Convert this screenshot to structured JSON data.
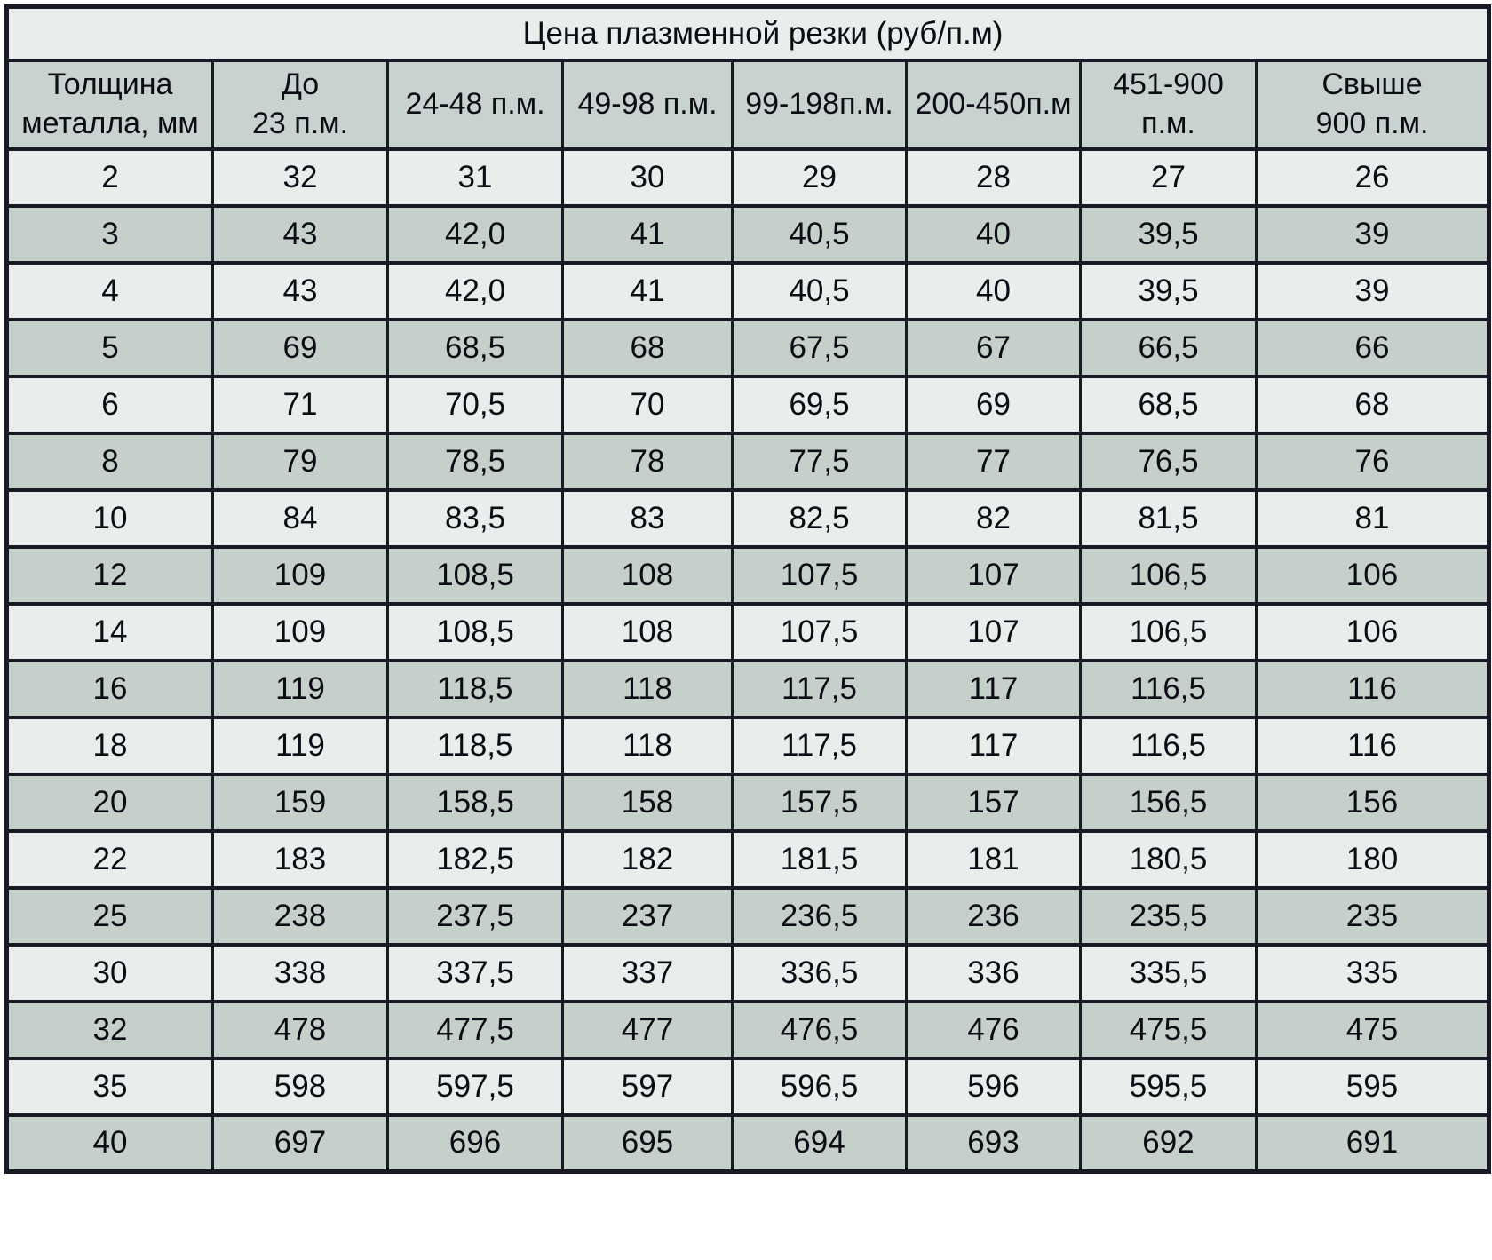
{
  "chart_data": {
    "type": "table",
    "title": "Цена плазменной резки (руб/п.м)",
    "columns": [
      "Толщина\nметалла, мм",
      "До\n23 п.м.",
      "24-48 п.м.",
      "49-98 п.м.",
      "99-198п.м.",
      "200-450п.м",
      "451-900\nп.м.",
      "Свыше\n900 п.м."
    ],
    "rows": [
      [
        "2",
        "32",
        "31",
        "30",
        "29",
        "28",
        "27",
        "26"
      ],
      [
        "3",
        "43",
        "42,0",
        "41",
        "40,5",
        "40",
        "39,5",
        "39"
      ],
      [
        "4",
        "43",
        "42,0",
        "41",
        "40,5",
        "40",
        "39,5",
        "39"
      ],
      [
        "5",
        "69",
        "68,5",
        "68",
        "67,5",
        "67",
        "66,5",
        "66"
      ],
      [
        "6",
        "71",
        "70,5",
        "70",
        "69,5",
        "69",
        "68,5",
        "68"
      ],
      [
        "8",
        "79",
        "78,5",
        "78",
        "77,5",
        "77",
        "76,5",
        "76"
      ],
      [
        "10",
        "84",
        "83,5",
        "83",
        "82,5",
        "82",
        "81,5",
        "81"
      ],
      [
        "12",
        "109",
        "108,5",
        "108",
        "107,5",
        "107",
        "106,5",
        "106"
      ],
      [
        "14",
        "109",
        "108,5",
        "108",
        "107,5",
        "107",
        "106,5",
        "106"
      ],
      [
        "16",
        "119",
        "118,5",
        "118",
        "117,5",
        "117",
        "116,5",
        "116"
      ],
      [
        "18",
        "119",
        "118,5",
        "118",
        "117,5",
        "117",
        "116,5",
        "116"
      ],
      [
        "20",
        "159",
        "158,5",
        "158",
        "157,5",
        "157",
        "156,5",
        "156"
      ],
      [
        "22",
        "183",
        "182,5",
        "182",
        "181,5",
        "181",
        "180,5",
        "180"
      ],
      [
        "25",
        "238",
        "237,5",
        "237",
        "236,5",
        "236",
        "235,5",
        "235"
      ],
      [
        "30",
        "338",
        "337,5",
        "337",
        "336,5",
        "336",
        "335,5",
        "335"
      ],
      [
        "32",
        "478",
        "477,5",
        "477",
        "476,5",
        "476",
        "475,5",
        "475"
      ],
      [
        "35",
        "598",
        "597,5",
        "597",
        "596,5",
        "596",
        "595,5",
        "595"
      ],
      [
        "40",
        "697",
        "696",
        "695",
        "694",
        "693",
        "692",
        "691"
      ]
    ]
  },
  "colors": {
    "row_light": "#e9edec",
    "row_gray": "#c6d0cb",
    "header_gray": "#c8d2ce",
    "border": "#191a26",
    "text": "#0c0c14",
    "page_bg": "#ffffff"
  }
}
